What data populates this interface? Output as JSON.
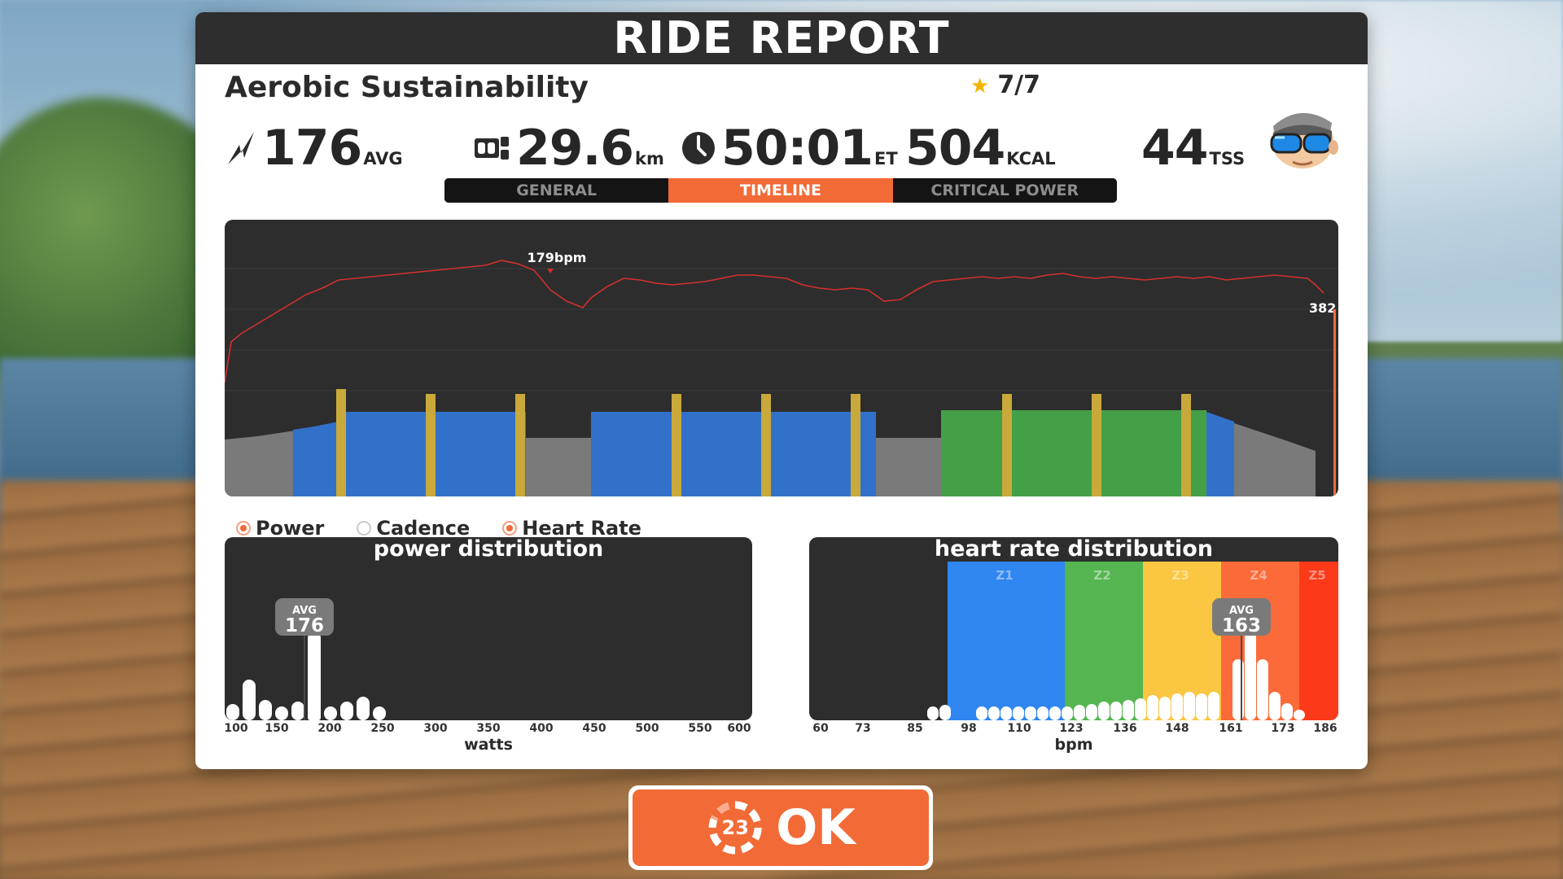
{
  "header": {
    "title": "RIDE REPORT"
  },
  "workout": {
    "name": "Aerobic Sustainability",
    "rating": "7/7"
  },
  "stats": {
    "power": {
      "value": "176",
      "unit": "AVG"
    },
    "distance": {
      "value": "29.6",
      "unit": "km"
    },
    "time": {
      "value": "50:01",
      "unit": "ET"
    },
    "energy": {
      "value": "504",
      "unit": "KCAL"
    },
    "tss": {
      "value": "44",
      "unit": "TSS"
    }
  },
  "tabs": [
    {
      "label": "GENERAL",
      "active": false
    },
    {
      "label": "TIMELINE",
      "active": true
    },
    {
      "label": "CRITICAL POWER",
      "active": false
    }
  ],
  "timeline": {
    "hr_peak_label": "179bpm",
    "end_label": "382",
    "hr_line_color": "#d32f2f",
    "zone_colors": {
      "endurance": "#3271c9",
      "tempo": "#43a047",
      "spike": "#c9a93a",
      "recovery": "#7a7a7a"
    }
  },
  "legend": [
    {
      "label": "Power",
      "on": true
    },
    {
      "label": "Cadence",
      "on": false
    },
    {
      "label": "Heart Rate",
      "on": true
    }
  ],
  "power_distribution": {
    "title": "power distribution",
    "avg_label": "AVG",
    "avg_value": "176",
    "xlabel": "watts",
    "ticks": [
      "100",
      "150",
      "200",
      "250",
      "300",
      "350",
      "400",
      "450",
      "500",
      "550",
      "600"
    ]
  },
  "hr_distribution": {
    "title": "heart rate distribution",
    "avg_label": "AVG",
    "avg_value": "163",
    "xlabel": "bpm",
    "ticks": [
      "60",
      "73",
      "85",
      "98",
      "110",
      "123",
      "136",
      "148",
      "161",
      "173",
      "186"
    ],
    "zones": [
      {
        "label": "Z1",
        "color": "#2f86f0"
      },
      {
        "label": "Z2",
        "color": "#55b651"
      },
      {
        "label": "Z3",
        "color": "#fbc742"
      },
      {
        "label": "Z4",
        "color": "#fc6a3a"
      },
      {
        "label": "Z5",
        "color": "#fc3a1a"
      }
    ]
  },
  "ok_button": {
    "label": "OK",
    "countdown": "23"
  }
}
